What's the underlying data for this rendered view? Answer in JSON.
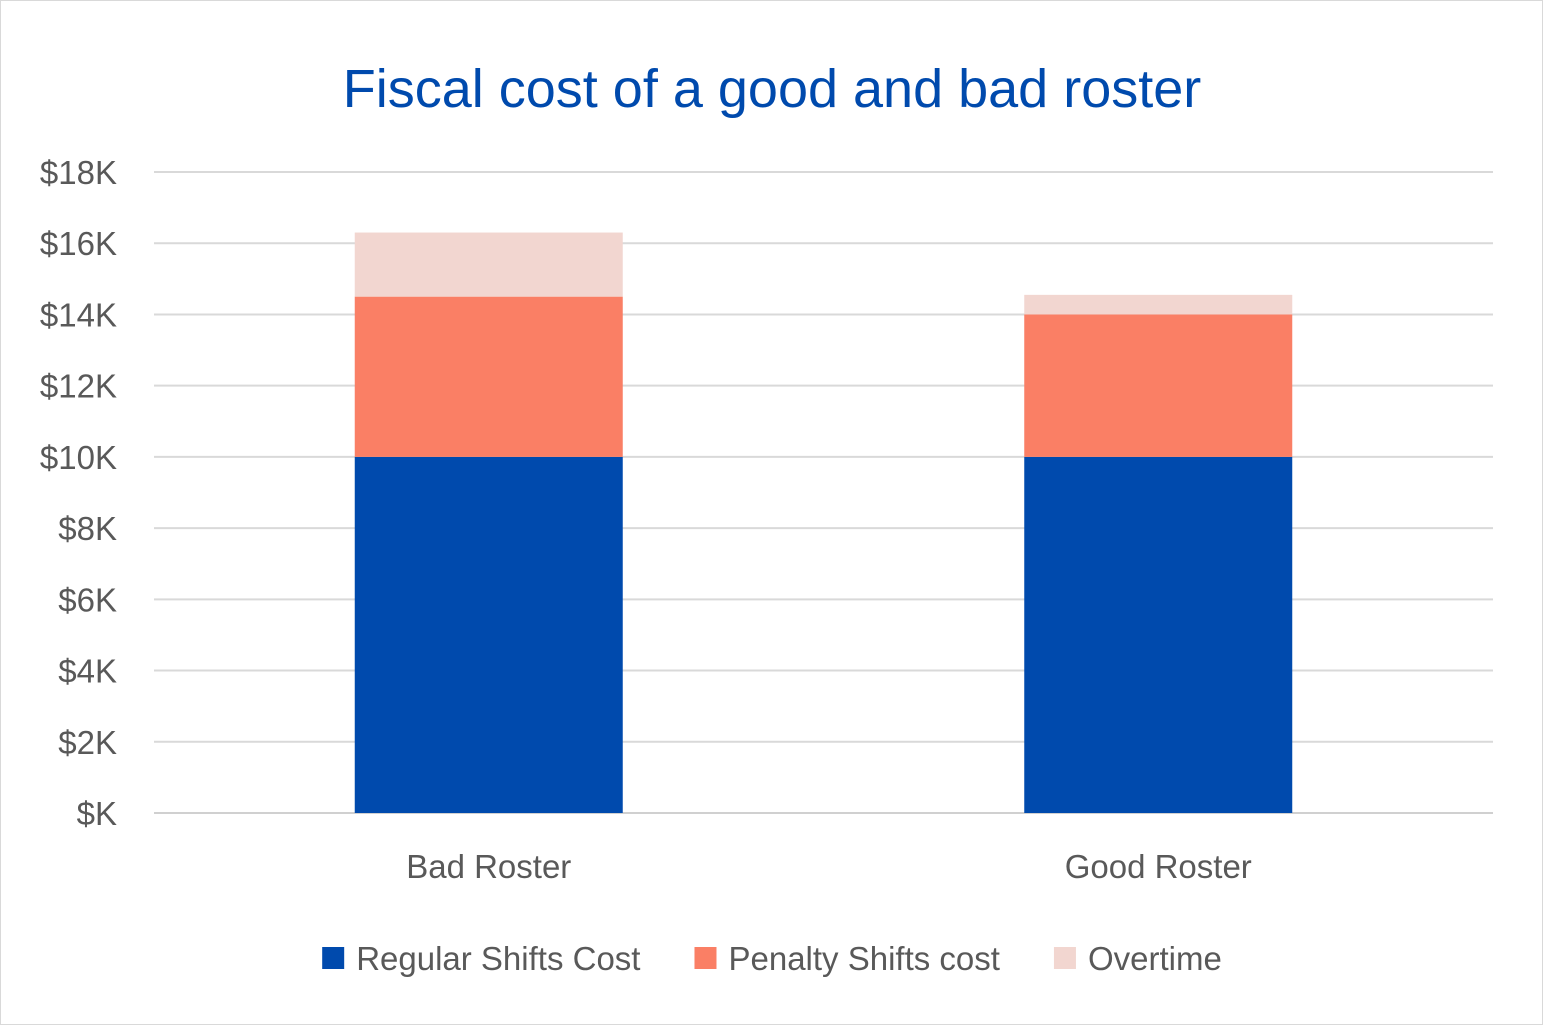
{
  "chart_data": {
    "type": "bar",
    "stacked": true,
    "title": "Fiscal cost of a good and bad roster",
    "categories": [
      "Bad Roster",
      "Good Roster"
    ],
    "series": [
      {
        "name": "Regular Shifts Cost",
        "color": "#004AAD",
        "values": [
          10000,
          10000
        ]
      },
      {
        "name": "Penalty Shifts cost",
        "color": "#FA7F65",
        "values": [
          4500,
          4000
        ]
      },
      {
        "name": "Overtime",
        "color": "#F2D6D0",
        "values": [
          1800,
          550
        ]
      }
    ],
    "ylim": [
      0,
      18000
    ],
    "yticks": [
      0,
      2000,
      4000,
      6000,
      8000,
      10000,
      12000,
      14000,
      16000,
      18000
    ],
    "ytick_labels": [
      "$K",
      "$2K",
      "$4K",
      "$6K",
      "$8K",
      "$10K",
      "$12K",
      "$14K",
      "$16K",
      "$18K"
    ],
    "grid": true,
    "legend": "bottom",
    "xlabel": "",
    "ylabel": "",
    "title_color": "#004AAD"
  }
}
